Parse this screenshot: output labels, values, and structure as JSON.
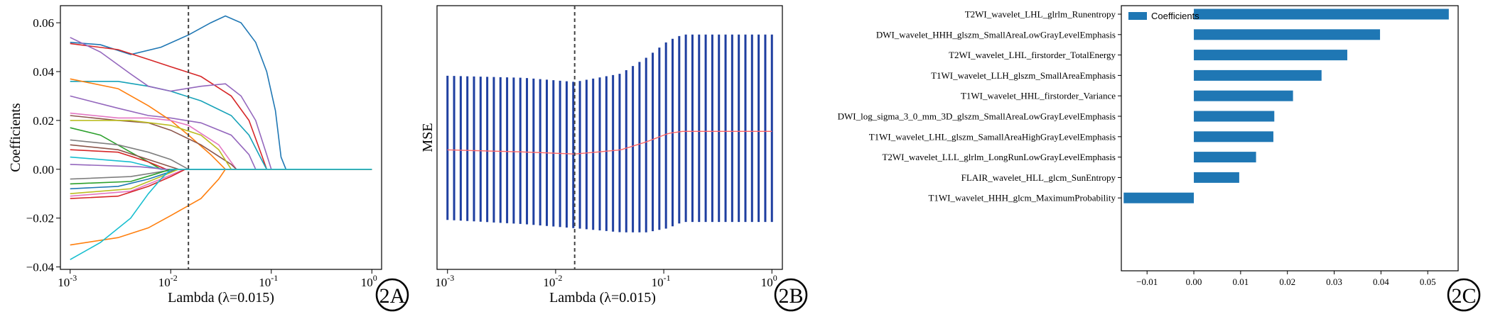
{
  "chart_data": [
    {
      "id": "2A",
      "type": "line",
      "x_scale": "log",
      "xlim": [
        0.0008,
        1.25
      ],
      "ylim": [
        -0.041,
        0.067
      ],
      "xlabel": "Lambda (λ=0.015)",
      "ylabel": "Coefficients",
      "x_ticks": [
        {
          "value": 0.001,
          "base": "10",
          "exp": "-3"
        },
        {
          "value": 0.01,
          "base": "10",
          "exp": "-2"
        },
        {
          "value": 0.1,
          "base": "10",
          "exp": "-1"
        },
        {
          "value": 1,
          "base": "10",
          "exp": "0"
        }
      ],
      "y_ticks": [
        {
          "value": -0.04,
          "label": "−0.04"
        },
        {
          "value": -0.02,
          "label": "−0.02"
        },
        {
          "value": 0.0,
          "label": "0.00"
        },
        {
          "value": 0.02,
          "label": "0.02"
        },
        {
          "value": 0.04,
          "label": "0.04"
        },
        {
          "value": 0.06,
          "label": "0.06"
        }
      ],
      "selected_lambda": 0.015,
      "badge": "2A",
      "series": [
        {
          "color": "#1f77b4",
          "points": [
            [
              0.001,
              0.052
            ],
            [
              0.002,
              0.051
            ],
            [
              0.004,
              0.047
            ],
            [
              0.008,
              0.05
            ],
            [
              0.015,
              0.055
            ],
            [
              0.025,
              0.06
            ],
            [
              0.035,
              0.0628
            ],
            [
              0.05,
              0.06
            ],
            [
              0.07,
              0.052
            ],
            [
              0.09,
              0.04
            ],
            [
              0.11,
              0.024
            ],
            [
              0.125,
              0.005
            ],
            [
              0.14,
              0.0
            ],
            [
              1,
              0
            ]
          ]
        },
        {
          "color": "#d62728",
          "points": [
            [
              0.001,
              0.0515
            ],
            [
              0.003,
              0.049
            ],
            [
              0.006,
              0.045
            ],
            [
              0.01,
              0.042
            ],
            [
              0.02,
              0.038
            ],
            [
              0.04,
              0.03
            ],
            [
              0.06,
              0.02
            ],
            [
              0.08,
              0.006
            ],
            [
              0.09,
              0.0
            ],
            [
              1,
              0
            ]
          ]
        },
        {
          "color": "#17a2b8",
          "points": [
            [
              0.001,
              0.036
            ],
            [
              0.003,
              0.036
            ],
            [
              0.006,
              0.034
            ],
            [
              0.01,
              0.032
            ],
            [
              0.02,
              0.028
            ],
            [
              0.04,
              0.022
            ],
            [
              0.06,
              0.014
            ],
            [
              0.08,
              0.004
            ],
            [
              0.09,
              0.0
            ],
            [
              1,
              0
            ]
          ]
        },
        {
          "color": "#9467bd",
          "points": [
            [
              0.001,
              0.054
            ],
            [
              0.002,
              0.048
            ],
            [
              0.004,
              0.039
            ],
            [
              0.006,
              0.034
            ],
            [
              0.01,
              0.032
            ],
            [
              0.02,
              0.034
            ],
            [
              0.035,
              0.035
            ],
            [
              0.05,
              0.03
            ],
            [
              0.07,
              0.02
            ],
            [
              0.09,
              0.006
            ],
            [
              0.1,
              0.0
            ],
            [
              1,
              0
            ]
          ]
        },
        {
          "color": "#9467bd",
          "points": [
            [
              0.001,
              0.03
            ],
            [
              0.003,
              0.025
            ],
            [
              0.006,
              0.022
            ],
            [
              0.01,
              0.021
            ],
            [
              0.02,
              0.019
            ],
            [
              0.04,
              0.014
            ],
            [
              0.06,
              0.006
            ],
            [
              0.07,
              0.0
            ],
            [
              1,
              0
            ]
          ]
        },
        {
          "color": "#ff7f0e",
          "points": [
            [
              0.001,
              0.037
            ],
            [
              0.003,
              0.033
            ],
            [
              0.006,
              0.026
            ],
            [
              0.01,
              0.02
            ],
            [
              0.015,
              0.014
            ],
            [
              0.025,
              0.006
            ],
            [
              0.035,
              0.0
            ],
            [
              1,
              0
            ]
          ]
        },
        {
          "color": "#e377c2",
          "points": [
            [
              0.001,
              0.023
            ],
            [
              0.003,
              0.021
            ],
            [
              0.006,
              0.021
            ],
            [
              0.01,
              0.02
            ],
            [
              0.015,
              0.018
            ],
            [
              0.03,
              0.01
            ],
            [
              0.045,
              0.0
            ],
            [
              1,
              0
            ]
          ]
        },
        {
          "color": "#8c564b",
          "points": [
            [
              0.001,
              0.022
            ],
            [
              0.003,
              0.02
            ],
            [
              0.006,
              0.019
            ],
            [
              0.01,
              0.016
            ],
            [
              0.02,
              0.01
            ],
            [
              0.04,
              0.002
            ],
            [
              0.045,
              0.0
            ],
            [
              1,
              0
            ]
          ]
        },
        {
          "color": "#bcbd22",
          "points": [
            [
              0.001,
              0.02
            ],
            [
              0.004,
              0.02
            ],
            [
              0.01,
              0.018
            ],
            [
              0.02,
              0.014
            ],
            [
              0.03,
              0.008
            ],
            [
              0.04,
              0.0
            ],
            [
              1,
              0
            ]
          ]
        },
        {
          "color": "#2ca02c",
          "points": [
            [
              0.001,
              0.017
            ],
            [
              0.002,
              0.014
            ],
            [
              0.004,
              0.007
            ],
            [
              0.006,
              0.003
            ],
            [
              0.008,
              0.0
            ],
            [
              1,
              0
            ]
          ]
        },
        {
          "color": "#7f7f7f",
          "points": [
            [
              0.001,
              0.012
            ],
            [
              0.003,
              0.01
            ],
            [
              0.006,
              0.007
            ],
            [
              0.01,
              0.004
            ],
            [
              0.015,
              0.0
            ],
            [
              1,
              0
            ]
          ]
        },
        {
          "color": "#8c564b",
          "points": [
            [
              0.001,
              0.01
            ],
            [
              0.003,
              0.008
            ],
            [
              0.006,
              0.004
            ],
            [
              0.01,
              0.001
            ],
            [
              0.012,
              0.0
            ],
            [
              1,
              0
            ]
          ]
        },
        {
          "color": "#d62728",
          "points": [
            [
              0.001,
              0.008
            ],
            [
              0.003,
              0.007
            ],
            [
              0.006,
              0.003
            ],
            [
              0.009,
              0.0
            ],
            [
              1,
              0
            ]
          ]
        },
        {
          "color": "#17becf",
          "points": [
            [
              0.001,
              0.005
            ],
            [
              0.004,
              0.003
            ],
            [
              0.008,
              0.0
            ],
            [
              1,
              0
            ]
          ]
        },
        {
          "color": "#9467bd",
          "points": [
            [
              0.001,
              0.002
            ],
            [
              0.005,
              0.001
            ],
            [
              0.009,
              0.0
            ],
            [
              1,
              0
            ]
          ]
        },
        {
          "color": "#7f7f7f",
          "points": [
            [
              0.001,
              -0.004
            ],
            [
              0.004,
              -0.003
            ],
            [
              0.008,
              -0.001
            ],
            [
              0.012,
              0.0
            ],
            [
              1,
              0
            ]
          ]
        },
        {
          "color": "#2ca02c",
          "points": [
            [
              0.001,
              -0.006
            ],
            [
              0.004,
              -0.005
            ],
            [
              0.007,
              -0.002
            ],
            [
              0.01,
              0.0
            ],
            [
              1,
              0
            ]
          ]
        },
        {
          "color": "#1f77b4",
          "points": [
            [
              0.001,
              -0.008
            ],
            [
              0.003,
              -0.007
            ],
            [
              0.006,
              -0.004
            ],
            [
              0.01,
              -0.001
            ],
            [
              0.012,
              0.0
            ],
            [
              1,
              0
            ]
          ]
        },
        {
          "color": "#bcbd22",
          "points": [
            [
              0.001,
              -0.01
            ],
            [
              0.004,
              -0.008
            ],
            [
              0.008,
              -0.003
            ],
            [
              0.012,
              0.0
            ],
            [
              1,
              0
            ]
          ]
        },
        {
          "color": "#e377c2",
          "points": [
            [
              0.001,
              -0.011
            ],
            [
              0.004,
              -0.009
            ],
            [
              0.008,
              -0.004
            ],
            [
              0.012,
              -0.001
            ],
            [
              0.014,
              0.0
            ],
            [
              1,
              0
            ]
          ]
        },
        {
          "color": "#d62728",
          "points": [
            [
              0.001,
              -0.012
            ],
            [
              0.003,
              -0.011
            ],
            [
              0.006,
              -0.007
            ],
            [
              0.01,
              -0.003
            ],
            [
              0.014,
              0.0
            ],
            [
              1,
              0
            ]
          ]
        },
        {
          "color": "#ff7f0e",
          "points": [
            [
              0.001,
              -0.031
            ],
            [
              0.003,
              -0.028
            ],
            [
              0.006,
              -0.024
            ],
            [
              0.01,
              -0.019
            ],
            [
              0.02,
              -0.012
            ],
            [
              0.03,
              -0.004
            ],
            [
              0.035,
              0.0
            ],
            [
              1,
              0
            ]
          ]
        },
        {
          "color": "#17becf",
          "points": [
            [
              0.001,
              -0.037
            ],
            [
              0.002,
              -0.03
            ],
            [
              0.004,
              -0.02
            ],
            [
              0.006,
              -0.01
            ],
            [
              0.008,
              -0.004
            ],
            [
              0.01,
              0.0
            ],
            [
              1,
              0
            ]
          ]
        }
      ]
    },
    {
      "id": "2B",
      "type": "line",
      "x_scale": "log",
      "xlim": [
        0.0008,
        1.25
      ],
      "ylim": [
        0,
        1
      ],
      "xlabel": "Lambda (λ=0.015)",
      "ylabel": "MSE",
      "x_ticks": [
        {
          "value": 0.001,
          "base": "10",
          "exp": "-3"
        },
        {
          "value": 0.01,
          "base": "10",
          "exp": "-2"
        },
        {
          "value": 0.1,
          "base": "10",
          "exp": "-1"
        },
        {
          "value": 1,
          "base": "10",
          "exp": "0"
        }
      ],
      "selected_lambda": 0.015,
      "badge": "2B",
      "error_bar_color": "#1f3fa0",
      "mean_line_color": "#ff6666",
      "n_lambdas": 50,
      "mean_curve": [
        [
          0.001,
          0.4
        ],
        [
          0.005,
          0.39
        ],
        [
          0.015,
          0.38
        ],
        [
          0.04,
          0.4
        ],
        [
          0.07,
          0.44
        ],
        [
          0.11,
          0.48
        ],
        [
          0.15,
          0.49
        ],
        [
          1,
          0.49
        ]
      ],
      "upper_curve": [
        [
          0.001,
          0.76
        ],
        [
          0.005,
          0.75
        ],
        [
          0.015,
          0.73
        ],
        [
          0.04,
          0.77
        ],
        [
          0.07,
          0.85
        ],
        [
          0.11,
          0.93
        ],
        [
          0.15,
          0.96
        ],
        [
          1,
          0.96
        ]
      ],
      "lower_curve": [
        [
          0.001,
          0.06
        ],
        [
          0.005,
          0.04
        ],
        [
          0.015,
          0.02
        ],
        [
          0.04,
          0.0
        ],
        [
          0.07,
          0.0
        ],
        [
          0.11,
          0.02
        ],
        [
          0.15,
          0.05
        ],
        [
          1,
          0.05
        ]
      ]
    },
    {
      "id": "2C",
      "type": "bar",
      "orientation": "horizontal",
      "xlim": [
        -0.0155,
        0.0565
      ],
      "x_ticks": [
        {
          "value": -0.01,
          "label": "−0.01"
        },
        {
          "value": 0.0,
          "label": "0.00"
        },
        {
          "value": 0.01,
          "label": "0.01"
        },
        {
          "value": 0.02,
          "label": "0.02"
        },
        {
          "value": 0.03,
          "label": "0.03"
        },
        {
          "value": 0.04,
          "label": "0.04"
        },
        {
          "value": 0.05,
          "label": "0.05"
        }
      ],
      "legend": "Coefficients",
      "badge": "2C",
      "bar_color": "#1f77b4",
      "categories": [
        "T2WI_wavelet_LHL_glrlm_Runentropy",
        "DWI_wavelet_HHH_glszm_SmallAreaLowGrayLevelEmphasis",
        "T2WI_wavelet_LHL_firstorder_TotalEnergy",
        "T1WI_wavelet_LLH_glszm_SmallAreaEmphasis",
        "T1WI_wavelet_HHL_firstorder_Variance",
        "DWI_log_sigma_3_0_mm_3D_glszm_SmallAreaLowGrayLevelEmphasis",
        "T1WI_wavelet_LHL_glszm_SamallAreaHighGrayLevelEmphasis",
        "T2WI_wavelet_LLL_glrlm_LongRunLowGrayLevelEmphasis",
        "FLAIR_wavelet_HLL_glcm_SunEntropy",
        "T1WI_wavelet_HHH_glcm_MaximumProbability"
      ],
      "values": [
        0.0545,
        0.0398,
        0.0328,
        0.0273,
        0.0212,
        0.0172,
        0.017,
        0.0133,
        0.0097,
        -0.015
      ]
    }
  ]
}
